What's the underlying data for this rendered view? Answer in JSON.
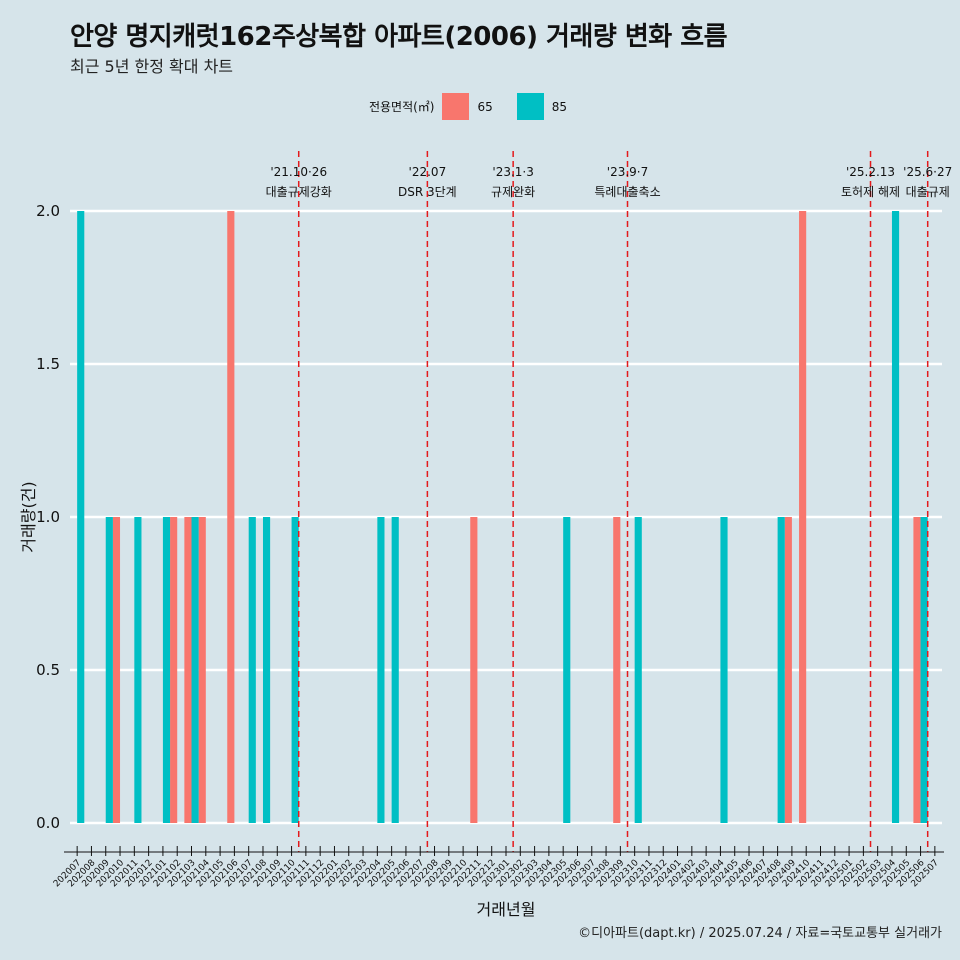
{
  "title": "안양 명지캐럿162주상복합 아파트(2006) 거래량 변화 흐름",
  "subtitle": "최근 5년 한정 확대 차트",
  "caption": "©디아파트(dapt.kr) / 2025.07.24 / 자료=국토교통부 실거래가",
  "legend": {
    "title": "전용면적(㎡)",
    "items": [
      {
        "label": "65",
        "color": "#f8766d"
      },
      {
        "label": "85",
        "color": "#00bfc4"
      }
    ]
  },
  "chart_data": {
    "type": "bar",
    "xlabel": "거래년월",
    "ylabel": "거래량(건)",
    "ylim": [
      0,
      2
    ],
    "yticks": [
      "0.0",
      "0.5",
      "1.0",
      "1.5",
      "2.0"
    ],
    "categories": [
      "202007",
      "202008",
      "202009",
      "202010",
      "202011",
      "202012",
      "202101",
      "202102",
      "202103",
      "202104",
      "202105",
      "202106",
      "202107",
      "202108",
      "202109",
      "202110",
      "202111",
      "202112",
      "202201",
      "202202",
      "202203",
      "202204",
      "202205",
      "202206",
      "202207",
      "202208",
      "202209",
      "202210",
      "202211",
      "202212",
      "202301",
      "202302",
      "202303",
      "202304",
      "202305",
      "202306",
      "202307",
      "202308",
      "202309",
      "202310",
      "202311",
      "202312",
      "202401",
      "202402",
      "202403",
      "202404",
      "202405",
      "202406",
      "202407",
      "202408",
      "202409",
      "202410",
      "202411",
      "202412",
      "202501",
      "202502",
      "202503",
      "202504",
      "202505",
      "202506",
      "202507"
    ],
    "series": [
      {
        "name": "65",
        "color": "#f8766d",
        "values": [
          0,
          0,
          0,
          1,
          0,
          0,
          0,
          1,
          1,
          1,
          0,
          2,
          0,
          0,
          0,
          0,
          0,
          0,
          0,
          0,
          0,
          0,
          0,
          0,
          0,
          0,
          0,
          0,
          1,
          0,
          0,
          0,
          0,
          0,
          0,
          0,
          0,
          0,
          1,
          0,
          0,
          0,
          0,
          0,
          0,
          0,
          0,
          0,
          0,
          0,
          1,
          2,
          0,
          0,
          0,
          0,
          0,
          0,
          0,
          1,
          0
        ]
      },
      {
        "name": "85",
        "color": "#00bfc4",
        "values": [
          2,
          0,
          1,
          0,
          1,
          0,
          1,
          0,
          1,
          0,
          0,
          0,
          1,
          1,
          0,
          1,
          0,
          0,
          0,
          0,
          0,
          1,
          1,
          0,
          0,
          0,
          0,
          0,
          0,
          0,
          0,
          0,
          0,
          0,
          1,
          0,
          0,
          0,
          0,
          1,
          0,
          0,
          0,
          0,
          0,
          1,
          0,
          0,
          0,
          1,
          0,
          0,
          0,
          0,
          0,
          0,
          0,
          2,
          0,
          1,
          0
        ]
      }
    ],
    "events": [
      {
        "index": 15.5,
        "date": "'21.10·26",
        "label": "대출규제강화"
      },
      {
        "index": 24.5,
        "date": "'22.07",
        "label": "DSR 3단계"
      },
      {
        "index": 30.5,
        "date": "'23.1·3",
        "label": "규제완화"
      },
      {
        "index": 38.5,
        "date": "'23.9·7",
        "label": "특례대출축소"
      },
      {
        "index": 55.5,
        "date": "'25.2.13",
        "label": "토허제 해제"
      },
      {
        "index": 59.5,
        "date": "'25.6·27",
        "label": "대출규제"
      }
    ]
  }
}
